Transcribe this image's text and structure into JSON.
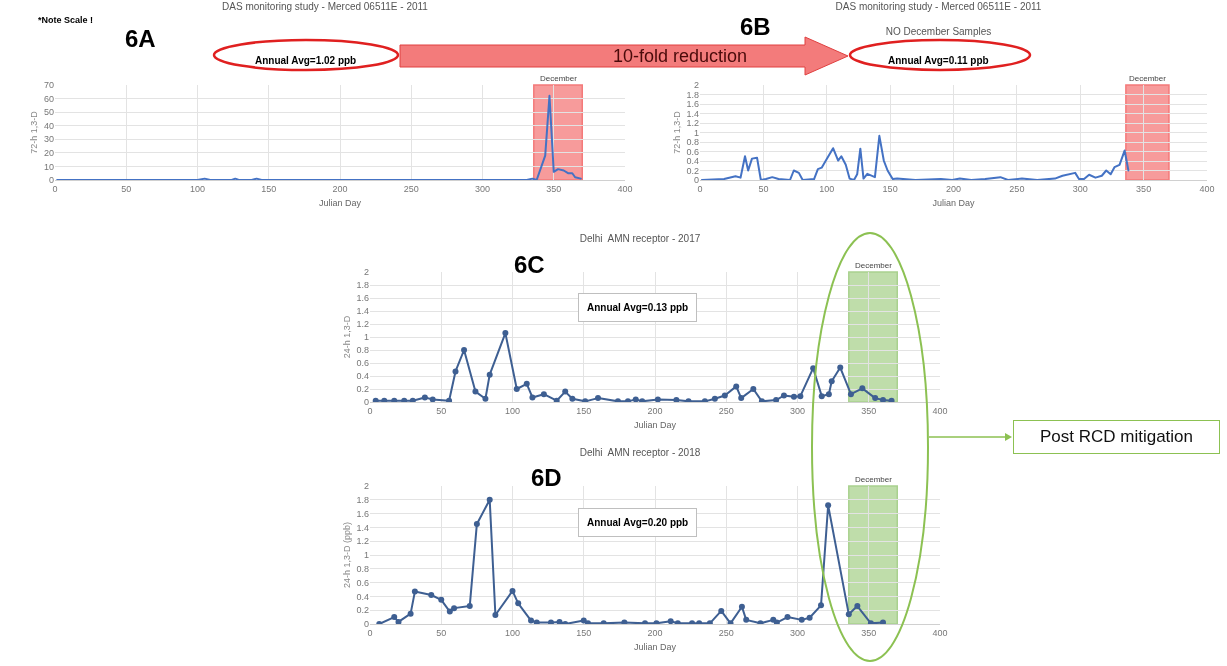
{
  "chart_data": [
    {
      "type": "line",
      "title": "DAS monitoring study - Merced 06511E - 2011",
      "xlabel": "Julian Day",
      "ylabel": "72-h 1,3-D",
      "color": "#4472c4",
      "x": [
        1.5,
        19,
        28,
        32,
        35.5,
        38,
        41,
        45,
        48,
        52,
        57,
        62,
        71,
        74,
        78,
        81,
        90,
        93,
        96,
        100,
        105,
        109,
        111.5,
        115,
        118,
        121.5,
        124,
        126.5,
        129,
        132,
        138,
        141.5,
        145,
        148,
        152,
        155.5,
        170,
        190,
        199,
        205,
        214,
        225,
        237,
        243,
        254,
        266,
        280,
        286,
        296,
        299,
        303,
        307,
        312,
        317,
        320.5,
        324,
        327,
        331,
        335,
        338,
        344,
        347,
        350,
        353,
        357,
        360,
        363,
        365,
        369
      ],
      "values": [
        0,
        0,
        0,
        0,
        0,
        0,
        0,
        0,
        0,
        0,
        0,
        0,
        0,
        0,
        0,
        0,
        0,
        0,
        0,
        0,
        1,
        0,
        0,
        0,
        0,
        0,
        0,
        1,
        0,
        0,
        0,
        1,
        0,
        0,
        0,
        0,
        0,
        0,
        0,
        0,
        0,
        0,
        0,
        0,
        0,
        0,
        0,
        0,
        0,
        0,
        0,
        0,
        0,
        0,
        0,
        0,
        0,
        0,
        1,
        0,
        18,
        62,
        6,
        8,
        7,
        5,
        5,
        2,
        1
      ],
      "xlim": [
        0,
        400
      ],
      "xticks": [
        0,
        50,
        100,
        150,
        200,
        250,
        300,
        350,
        400
      ],
      "ylim": [
        0,
        70
      ],
      "yticks": [
        0,
        10,
        20,
        30,
        40,
        50,
        60,
        70
      ],
      "grid": true,
      "bands": [
        {
          "axis": "x",
          "from": 336,
          "to": 370,
          "label": "December",
          "color": "#f47a7a"
        }
      ],
      "annotations": [
        "*Note Scale !",
        "6A",
        "Annual Avg=1.02 ppb",
        "10-fold reduction"
      ]
    },
    {
      "type": "line",
      "title": "DAS monitoring study - Merced 06511E - 2011",
      "subtitle": "NO December Samples",
      "xlabel": "Julian Day",
      "ylabel": "72-h 1,3-D",
      "color": "#4472c4",
      "x": [
        1.5,
        19,
        28,
        32,
        35.5,
        38,
        41,
        45,
        48,
        52,
        57,
        62,
        71,
        74,
        78,
        81,
        90,
        93,
        96,
        100,
        105,
        109,
        111.5,
        115,
        118,
        121.5,
        124,
        126.5,
        129,
        132,
        138,
        141.5,
        145,
        148,
        152,
        155.5,
        170,
        190,
        199,
        205,
        214,
        225,
        237,
        243,
        254,
        266,
        280,
        286,
        296,
        299,
        303,
        307,
        312,
        317,
        320.5,
        324,
        327,
        331,
        335,
        338
      ],
      "values": [
        0,
        0.02,
        0.08,
        0.05,
        0.5,
        0.2,
        0.45,
        0.47,
        0,
        0.02,
        0.06,
        0.02,
        0,
        0.2,
        0.15,
        0,
        0.02,
        0.23,
        0.26,
        0.44,
        0.67,
        0.41,
        0.5,
        0.32,
        0.03,
        0,
        0.12,
        0.66,
        0.03,
        0.13,
        0.06,
        0.93,
        0.41,
        0.2,
        0.02,
        0.03,
        0,
        0.02,
        0,
        0.03,
        0,
        0.02,
        0.06,
        0,
        0.03,
        0,
        0.03,
        0.09,
        0.15,
        0.02,
        0.02,
        0.11,
        0.05,
        0.09,
        0.2,
        0.12,
        0.27,
        0.32,
        0.62,
        0.2
      ],
      "xlim": [
        0,
        400
      ],
      "xticks": [
        0,
        50,
        100,
        150,
        200,
        250,
        300,
        350,
        400
      ],
      "ylim": [
        0,
        2
      ],
      "yticks": [
        0,
        0.2,
        0.4,
        0.6,
        0.8,
        1,
        1.2,
        1.4,
        1.6,
        1.8,
        2
      ],
      "grid": true,
      "bands": [
        {
          "axis": "x",
          "from": 336,
          "to": 370,
          "label": "December",
          "color": "#f47a7a"
        }
      ],
      "annotations": [
        "6B",
        "Annual Avg=0.11 ppb"
      ]
    },
    {
      "type": "line",
      "title": "Delhi  AMN receptor - 2017",
      "xlabel": "Julian Day",
      "ylabel": "24-h 1,3-D",
      "color": "#3e5f92",
      "marker": "circle",
      "x": [
        4,
        10,
        17,
        24,
        30,
        38.5,
        44,
        55.5,
        60,
        66,
        74,
        81,
        84,
        95,
        103,
        110,
        114,
        122,
        131,
        137,
        142,
        151,
        160,
        174,
        181,
        186.5,
        191,
        202,
        215,
        223.5,
        235,
        242,
        249,
        257,
        260.5,
        269,
        275,
        285,
        290.5,
        297.5,
        302,
        311,
        317,
        322,
        324,
        330,
        337.5,
        345.5,
        354.5,
        360,
        366
      ],
      "values": [
        0.02,
        0.02,
        0.02,
        0.02,
        0.02,
        0.07,
        0.04,
        0.02,
        0.47,
        0.8,
        0.16,
        0.05,
        0.42,
        1.06,
        0.2,
        0.28,
        0.07,
        0.12,
        0.02,
        0.16,
        0.05,
        0.01,
        0.06,
        0.01,
        0.01,
        0.04,
        0.01,
        0.04,
        0.03,
        0.01,
        0.01,
        0.05,
        0.1,
        0.24,
        0.06,
        0.2,
        0.01,
        0.03,
        0.1,
        0.08,
        0.09,
        0.52,
        0.09,
        0.12,
        0.32,
        0.53,
        0.12,
        0.21,
        0.06,
        0.03,
        0.02
      ],
      "xlim": [
        0,
        400
      ],
      "xticks": [
        0,
        50,
        100,
        150,
        200,
        250,
        300,
        350,
        400
      ],
      "ylim": [
        0,
        2
      ],
      "yticks": [
        0,
        0.2,
        0.4,
        0.6,
        0.8,
        1,
        1.2,
        1.4,
        1.6,
        1.8,
        2
      ],
      "grid": true,
      "bands": [
        {
          "axis": "x",
          "from": 336,
          "to": 370,
          "label": "December",
          "color": "#a9d18e"
        }
      ],
      "annotations": [
        "6C",
        "Annual Avg=0.13 ppb",
        "Post RCD mitigation"
      ]
    },
    {
      "type": "line",
      "title": "Delhi  AMN receptor - 2018",
      "xlabel": "Julian Day",
      "ylabel": "24-h 1,3-D (ppb)",
      "color": "#3e5f92",
      "marker": "circle",
      "x": [
        6.5,
        17,
        20,
        28.5,
        31.5,
        43,
        50,
        56,
        59,
        70,
        75,
        84,
        88,
        100,
        104,
        113,
        117,
        127,
        133,
        137,
        150,
        153,
        164,
        178.5,
        193,
        201,
        211,
        216,
        226,
        231,
        238.5,
        246.5,
        253,
        261,
        264,
        274,
        283,
        285.5,
        293,
        303,
        308.5,
        316.5,
        321.5,
        336,
        342,
        351.5,
        360
      ],
      "values": [
        0,
        0.1,
        0.03,
        0.15,
        0.47,
        0.42,
        0.35,
        0.18,
        0.23,
        0.26,
        1.45,
        1.8,
        0.13,
        0.48,
        0.3,
        0.05,
        0.02,
        0.02,
        0.03,
        0,
        0.05,
        0.01,
        0.01,
        0.02,
        0.01,
        0.01,
        0.04,
        0.01,
        0.01,
        0.01,
        0.01,
        0.19,
        0.01,
        0.25,
        0.06,
        0.01,
        0.06,
        0.02,
        0.1,
        0.06,
        0.09,
        0.27,
        1.72,
        0.14,
        0.26,
        0.01,
        0.02
      ],
      "xlim": [
        0,
        400
      ],
      "xticks": [
        0,
        50,
        100,
        150,
        200,
        250,
        300,
        350,
        400
      ],
      "ylim": [
        0,
        2
      ],
      "yticks": [
        0,
        0.2,
        0.4,
        0.6,
        0.8,
        1,
        1.2,
        1.4,
        1.6,
        1.8,
        2
      ],
      "grid": true,
      "bands": [
        {
          "axis": "x",
          "from": 336,
          "to": 370,
          "label": "December",
          "color": "#a9d18e"
        }
      ],
      "annotations": [
        "6D",
        "Annual Avg=0.20 ppb"
      ]
    }
  ]
}
